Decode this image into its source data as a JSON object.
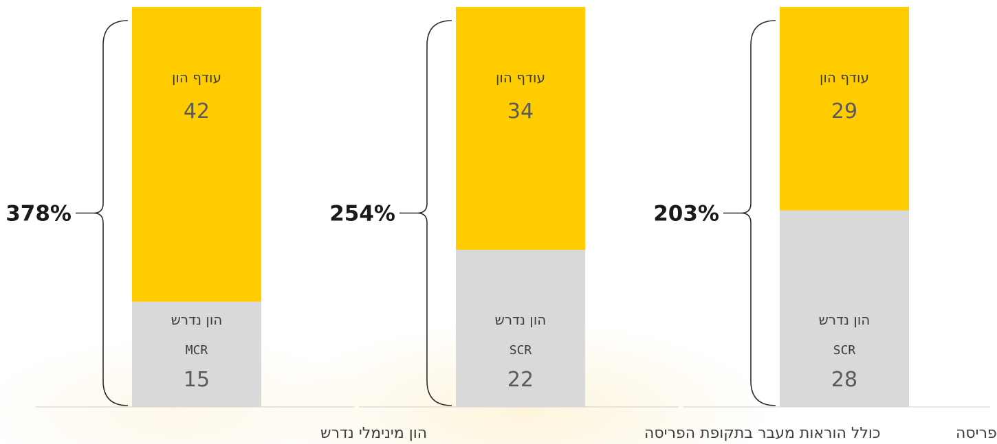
{
  "chart_data": {
    "type": "bar",
    "stacked": true,
    "categories": [
      "הון מינימלי נדרש",
      "כולל הוראות מעבר בתקופת הפריסה",
      "ללא הוראות מעבר לתקופת הפריסה"
    ],
    "series": [
      {
        "name": "הון נדרש",
        "codes": [
          "MCR",
          "SCR",
          "SCR"
        ],
        "values": [
          15,
          22,
          28
        ],
        "color": "#d9d9d9"
      },
      {
        "name": "עודף הון",
        "values": [
          42,
          34,
          29
        ],
        "color": "#ffcc00"
      }
    ],
    "ratios": [
      "378%",
      "254%",
      "203%"
    ],
    "title": "",
    "xlabel": "",
    "ylabel": "",
    "grid": false,
    "legend": "none"
  }
}
